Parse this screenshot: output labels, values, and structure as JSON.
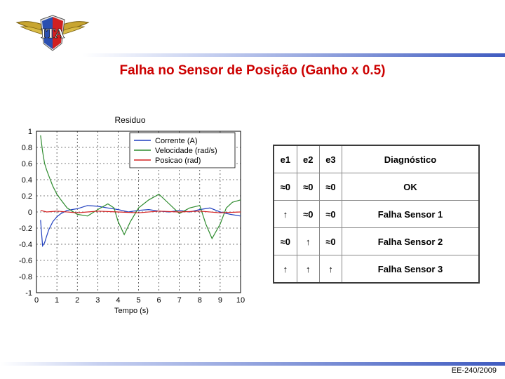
{
  "slide": {
    "title": "Falha no Sensor de Posição (Ganho x 0.5)",
    "footer": "EE-240/2009"
  },
  "colors": {
    "title": "#cc0000",
    "bar": "#3f5bc0",
    "corrente": "#1f3fbf",
    "velocidade": "#2e8b2e",
    "posicao": "#d42020"
  },
  "table": {
    "headers": [
      "e1",
      "e2",
      "e3",
      "Diagnóstico"
    ],
    "rows": [
      {
        "e1": "≈0",
        "e2": "≈0",
        "e3": "≈0",
        "diag": "OK",
        "color": "#000000"
      },
      {
        "e1": "↑",
        "e2": "≈0",
        "e3": "≈0",
        "diag": "Falha Sensor 1",
        "color": "#2a3a99"
      },
      {
        "e1": "≈0",
        "e2": "↑",
        "e3": "≈0",
        "diag": "Falha Sensor 2",
        "color": "#2a3a99"
      },
      {
        "e1": "↑",
        "e2": "↑",
        "e3": "↑",
        "diag": "Falha Sensor 3",
        "color": "#cc2222"
      }
    ]
  },
  "chart_data": {
    "type": "line",
    "title": "Residuo",
    "xlabel": "Tempo (s)",
    "ylabel": "",
    "xlim": [
      0,
      10
    ],
    "ylim": [
      -1,
      1
    ],
    "xticks": [
      "0",
      "1",
      "2",
      "3",
      "4",
      "5",
      "6",
      "7",
      "8",
      "9",
      "10"
    ],
    "yticks": [
      "1",
      "0.8",
      "0.6",
      "0.4",
      "0.2",
      "0",
      "-0.2",
      "-0.4",
      "-0.6",
      "-0.8",
      "-1"
    ],
    "grid": true,
    "legend_position": "top-right",
    "series": [
      {
        "name": "Corrente (A)",
        "color": "#1f3fbf",
        "x": [
          0.2,
          0.3,
          0.4,
          0.5,
          0.6,
          0.8,
          1.0,
          1.2,
          1.5,
          2.0,
          2.5,
          3.0,
          3.5,
          4.0,
          4.5,
          5.0,
          5.5,
          6.0,
          6.5,
          7.0,
          7.5,
          8.0,
          8.5,
          9.0,
          9.5,
          10.0
        ],
        "y": [
          -0.1,
          -0.42,
          -0.38,
          -0.3,
          -0.22,
          -0.12,
          -0.06,
          -0.02,
          0.02,
          0.04,
          0.08,
          0.07,
          0.05,
          0.03,
          0.0,
          0.02,
          0.03,
          0.01,
          0.0,
          0.02,
          0.0,
          0.03,
          0.05,
          0.0,
          -0.03,
          -0.05
        ]
      },
      {
        "name": "Velocidade (rad/s)",
        "color": "#2e8b2e",
        "x": [
          0.2,
          0.3,
          0.4,
          0.5,
          0.6,
          0.8,
          1.0,
          1.2,
          1.5,
          2.0,
          2.5,
          3.0,
          3.5,
          3.8,
          4.0,
          4.3,
          4.6,
          5.0,
          5.5,
          6.0,
          6.5,
          7.0,
          7.5,
          8.0,
          8.3,
          8.6,
          9.0,
          9.3,
          9.6,
          10.0
        ],
        "y": [
          0.95,
          0.75,
          0.6,
          0.52,
          0.45,
          0.32,
          0.22,
          0.15,
          0.05,
          -0.03,
          -0.05,
          0.03,
          0.1,
          0.05,
          -0.12,
          -0.28,
          -0.12,
          0.05,
          0.15,
          0.22,
          0.1,
          -0.02,
          0.05,
          0.08,
          -0.15,
          -0.33,
          -0.15,
          0.05,
          0.12,
          0.15
        ]
      },
      {
        "name": "Posicao (rad)",
        "color": "#d42020",
        "x": [
          0.2,
          0.5,
          1.0,
          2.0,
          3.0,
          4.0,
          5.0,
          6.0,
          7.0,
          8.0,
          9.0,
          10.0
        ],
        "y": [
          0.02,
          0.0,
          0.01,
          -0.01,
          0.01,
          0.0,
          -0.01,
          0.01,
          0.0,
          0.01,
          -0.01,
          0.0
        ]
      }
    ]
  }
}
